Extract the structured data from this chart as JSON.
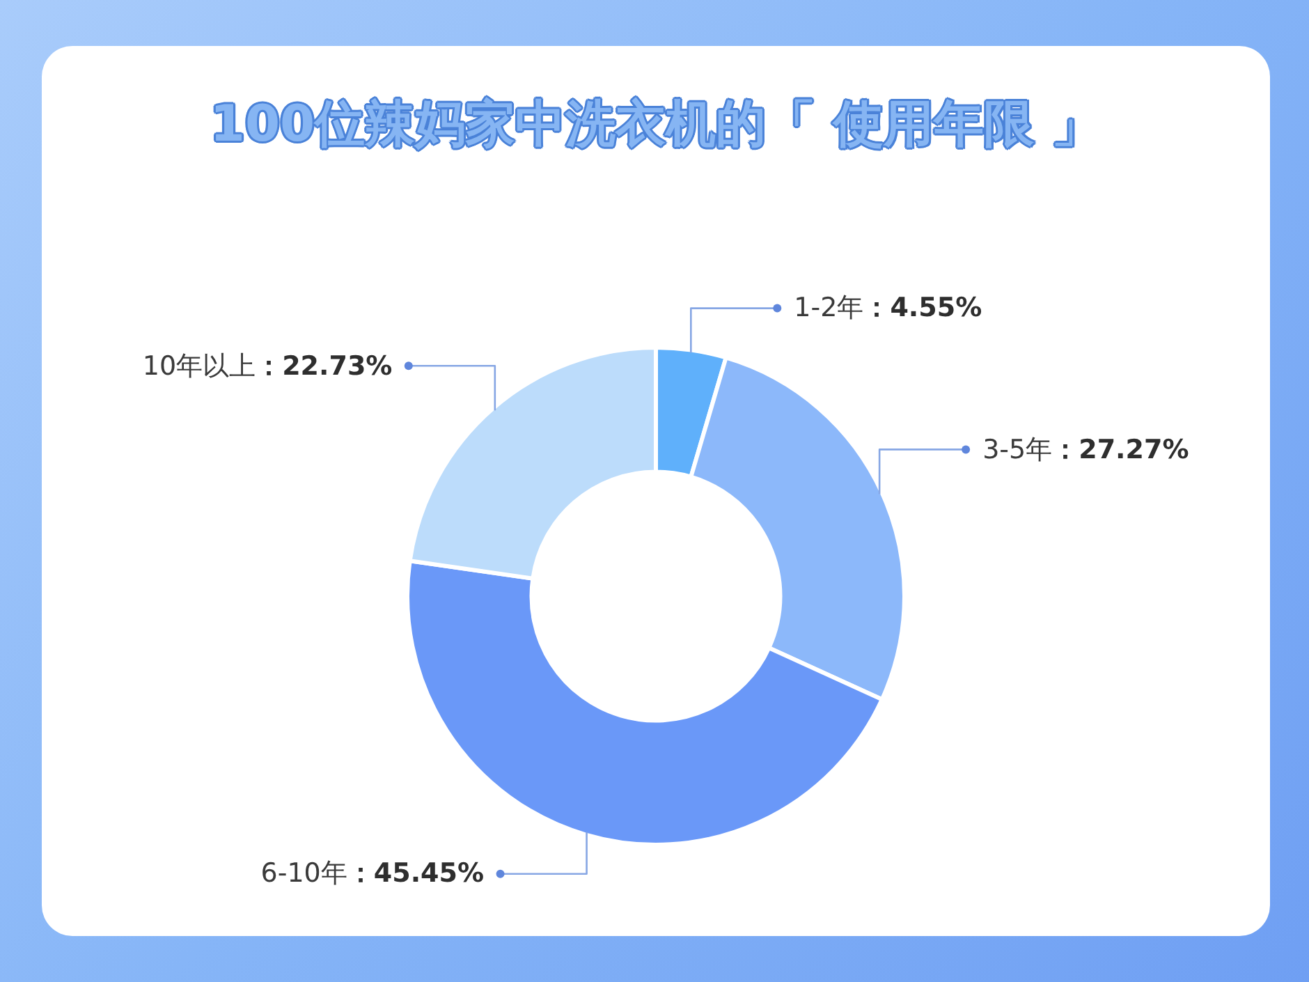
{
  "chart_data": {
    "type": "donut",
    "title": "100位辣妈家中洗衣机的「 使用年限 」",
    "categories": [
      "1-2年",
      "3-5年",
      "6-10年",
      "10年以上"
    ],
    "values": [
      4.55,
      27.27,
      45.45,
      22.73
    ],
    "colors": [
      "#5fb0fb",
      "#8cb8fa",
      "#6a98f8",
      "#bcdcfb"
    ],
    "value_labels": [
      "：4.55%",
      "：27.27%",
      "：45.45%",
      "：22.73%"
    ]
  }
}
